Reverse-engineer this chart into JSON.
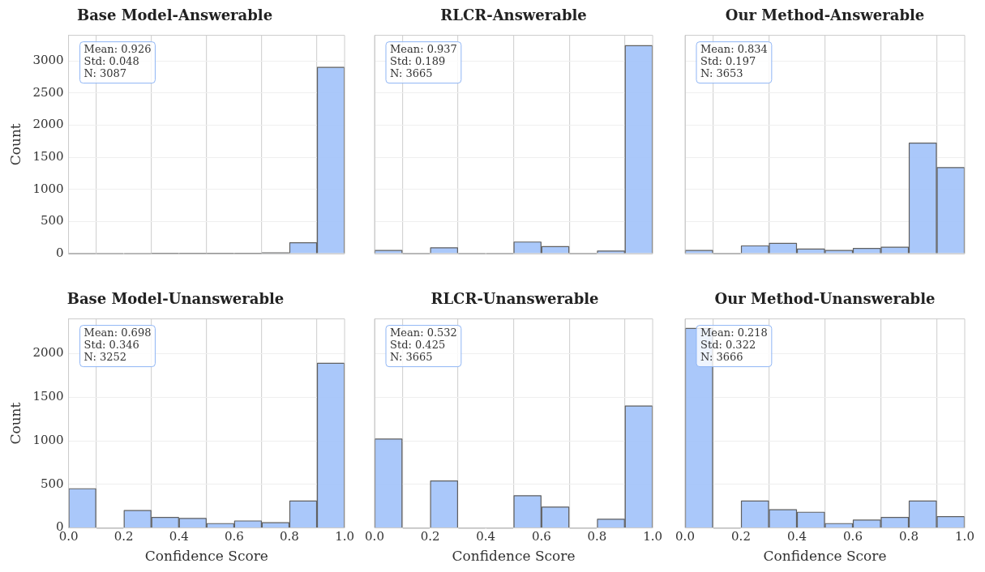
{
  "chart_data": [
    {
      "type": "histogram",
      "title": "Base Model-Answerable",
      "ylabel": "Count",
      "bins": [
        0,
        0.1,
        0.2,
        0.3,
        0.4,
        0.5,
        0.6,
        0.7,
        0.8,
        0.9,
        1.0
      ],
      "values": [
        0,
        0,
        0,
        5,
        5,
        5,
        5,
        10,
        170,
        2900
      ],
      "color": "#a1c2fa",
      "xlim": [
        0,
        1
      ],
      "xticks": [
        0,
        0.2,
        0.4,
        0.6,
        0.8,
        1
      ],
      "ylim": [
        0,
        3400
      ],
      "yticks": [
        0,
        500,
        1000,
        1500,
        2000,
        2500,
        3000
      ],
      "grid": true,
      "tick_labels": "y",
      "annotations": [
        "Mean: 0.926\nStd: 0.048\nN: 3087"
      ]
    },
    {
      "type": "histogram",
      "title": "RLCR-Answerable",
      "bins": [
        0,
        0.1,
        0.2,
        0.3,
        0.4,
        0.5,
        0.6,
        0.7,
        0.8,
        0.9,
        1.0
      ],
      "values": [
        50,
        0,
        90,
        0,
        0,
        180,
        110,
        0,
        40,
        3240
      ],
      "color": "#a1c2fa",
      "xlim": [
        0,
        1
      ],
      "xticks": [
        0,
        0.2,
        0.4,
        0.6,
        0.8,
        1
      ],
      "ylim": [
        0,
        3400
      ],
      "yticks": [
        0,
        500,
        1000,
        1500,
        2000,
        2500,
        3000
      ],
      "grid": true,
      "tick_labels": false,
      "annotations": [
        "Mean: 0.937\nStd: 0.189\nN: 3665"
      ]
    },
    {
      "type": "histogram",
      "title": "Our Method-Answerable",
      "bins": [
        0,
        0.1,
        0.2,
        0.3,
        0.4,
        0.5,
        0.6,
        0.7,
        0.8,
        0.9,
        1.0
      ],
      "values": [
        50,
        0,
        120,
        160,
        70,
        50,
        80,
        100,
        1720,
        1340
      ],
      "color": "#a1c2fa",
      "xlim": [
        0,
        1
      ],
      "xticks": [
        0,
        0.2,
        0.4,
        0.6,
        0.8,
        1
      ],
      "ylim": [
        0,
        3400
      ],
      "yticks": [
        0,
        500,
        1000,
        1500,
        2000,
        2500,
        3000
      ],
      "grid": true,
      "tick_labels": false,
      "annotations": [
        "Mean: 0.834\nStd: 0.197\nN: 3653"
      ]
    },
    {
      "type": "histogram",
      "title": "Base Model-Unanswerable",
      "xlabel": "Confidence Score",
      "ylabel": "Count",
      "bins": [
        0,
        0.1,
        0.2,
        0.3,
        0.4,
        0.5,
        0.6,
        0.7,
        0.8,
        0.9,
        1.0
      ],
      "values": [
        450,
        0,
        200,
        120,
        110,
        50,
        80,
        60,
        310,
        1890
      ],
      "color": "#a1c2fa",
      "xlim": [
        0,
        1
      ],
      "xticks": [
        {
          "value": 0,
          "label": "0.0"
        },
        {
          "value": 0.2,
          "label": "0.2"
        },
        {
          "value": 0.4,
          "label": "0.4"
        },
        {
          "value": 0.6,
          "label": "0.6"
        },
        {
          "value": 0.8,
          "label": "0.8"
        },
        {
          "value": 1,
          "label": "1.0"
        }
      ],
      "ylim": [
        0,
        2400
      ],
      "yticks": [
        0,
        500,
        1000,
        1500,
        2000
      ],
      "grid": true,
      "annotations": [
        "Mean: 0.698\nStd: 0.346\nN: 3252"
      ]
    },
    {
      "type": "histogram",
      "title": "RLCR-Unanswerable",
      "xlabel": "Confidence Score",
      "bins": [
        0,
        0.1,
        0.2,
        0.3,
        0.4,
        0.5,
        0.6,
        0.7,
        0.8,
        0.9,
        1.0
      ],
      "values": [
        1020,
        0,
        540,
        0,
        0,
        370,
        240,
        0,
        100,
        1400
      ],
      "color": "#a1c2fa",
      "xlim": [
        0,
        1
      ],
      "xticks": [
        {
          "value": 0,
          "label": "0.0"
        },
        {
          "value": 0.2,
          "label": "0.2"
        },
        {
          "value": 0.4,
          "label": "0.4"
        },
        {
          "value": 0.6,
          "label": "0.6"
        },
        {
          "value": 0.8,
          "label": "0.8"
        },
        {
          "value": 1,
          "label": "1.0"
        }
      ],
      "ylim": [
        0,
        2400
      ],
      "yticks": [
        0,
        500,
        1000,
        1500,
        2000
      ],
      "grid": true,
      "tick_labels": "x",
      "annotations": [
        "Mean: 0.532\nStd: 0.425\nN: 3665"
      ]
    },
    {
      "type": "histogram",
      "title": "Our Method-Unanswerable",
      "xlabel": "Confidence Score",
      "bins": [
        0,
        0.1,
        0.2,
        0.3,
        0.4,
        0.5,
        0.6,
        0.7,
        0.8,
        0.9,
        1.0
      ],
      "values": [
        2290,
        0,
        310,
        210,
        180,
        50,
        90,
        120,
        310,
        130
      ],
      "color": "#a1c2fa",
      "xlim": [
        0,
        1
      ],
      "xticks": [
        {
          "value": 0,
          "label": "0.0"
        },
        {
          "value": 0.2,
          "label": "0.2"
        },
        {
          "value": 0.4,
          "label": "0.4"
        },
        {
          "value": 0.6,
          "label": "0.6"
        },
        {
          "value": 0.8,
          "label": "0.8"
        },
        {
          "value": 1,
          "label": "1.0"
        }
      ],
      "ylim": [
        0,
        2400
      ],
      "yticks": [
        0,
        500,
        1000,
        1500,
        2000
      ],
      "grid": true,
      "tick_labels": "x",
      "annotations": [
        "Mean: 0.218\nStd: 0.322\nN: 3666"
      ]
    }
  ]
}
